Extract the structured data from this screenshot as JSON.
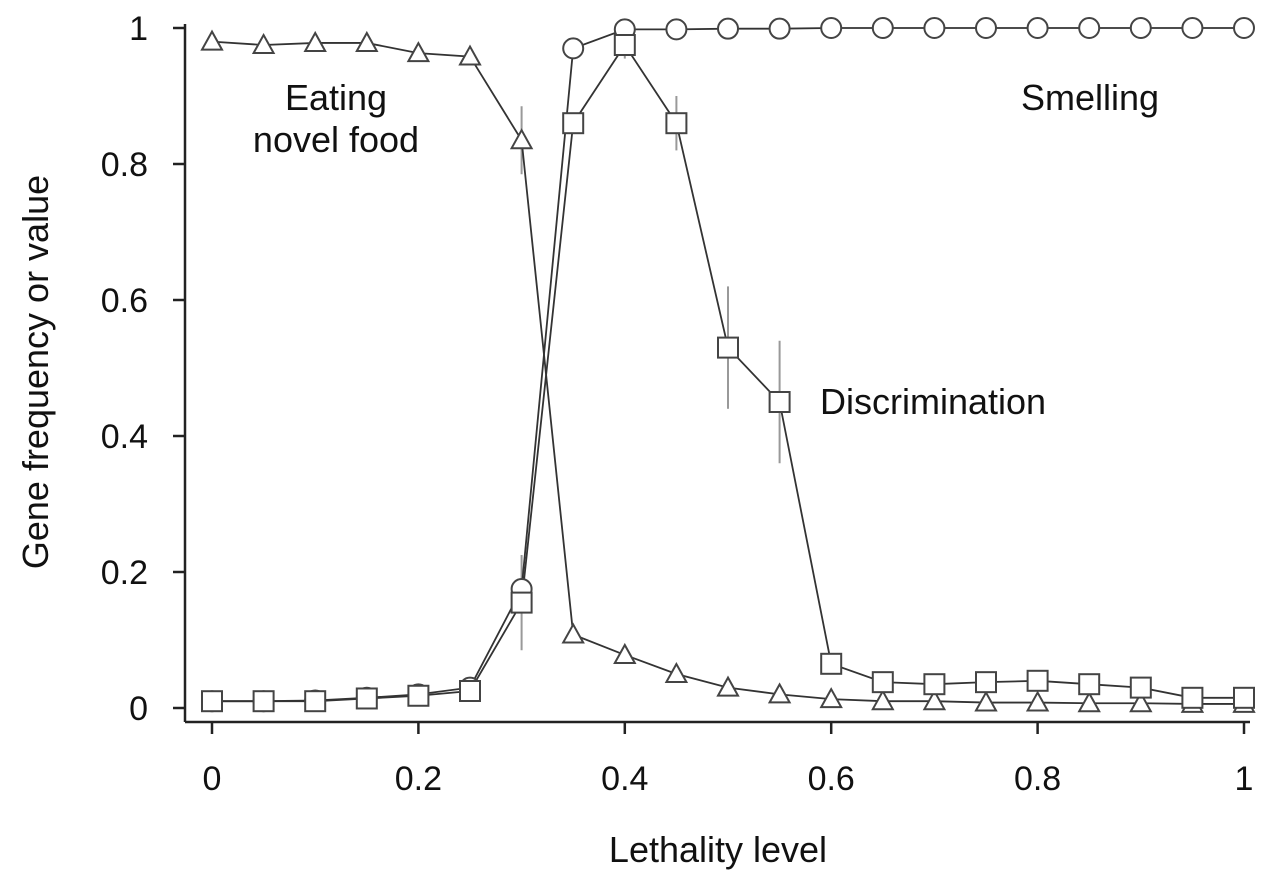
{
  "chart_data": {
    "type": "line",
    "xlabel": "Lethality level",
    "ylabel": "Gene frequency or value",
    "xlim": [
      0,
      1
    ],
    "ylim": [
      0,
      1
    ],
    "xticks": [
      "0",
      "0.2",
      "0.4",
      "0.6",
      "0.8",
      "1"
    ],
    "yticks": [
      "0",
      "0.2",
      "0.4",
      "0.6",
      "0.8",
      "1"
    ],
    "grid": false,
    "legend": "none",
    "x": [
      0,
      0.05,
      0.1,
      0.15,
      0.2,
      0.25,
      0.3,
      0.35,
      0.4,
      0.45,
      0.5,
      0.55,
      0.6,
      0.65,
      0.7,
      0.75,
      0.8,
      0.85,
      0.9,
      0.95,
      1.0
    ],
    "series": [
      {
        "marker": "triangle",
        "values": [
          0.98,
          0.975,
          0.978,
          0.978,
          0.963,
          0.958,
          0.835,
          0.108,
          0.078,
          0.05,
          0.03,
          0.02,
          0.013,
          0.01,
          0.01,
          0.008,
          0.008,
          0.007,
          0.007,
          0.006,
          0.006
        ],
        "errors": [
          0,
          0,
          0,
          0,
          0,
          0,
          0.05,
          0,
          0,
          0,
          0,
          0,
          0,
          0,
          0,
          0,
          0,
          0,
          0,
          0,
          0
        ]
      },
      {
        "marker": "circle",
        "values": [
          0.01,
          0.01,
          0.011,
          0.015,
          0.02,
          0.03,
          0.175,
          0.97,
          0.998,
          0.998,
          0.999,
          0.999,
          1.0,
          1.0,
          1.0,
          1.0,
          1.0,
          1.0,
          1.0,
          1.0,
          1.0
        ],
        "errors": [
          0,
          0,
          0,
          0,
          0,
          0,
          0,
          0,
          0,
          0,
          0,
          0,
          0,
          0,
          0,
          0,
          0,
          0,
          0,
          0,
          0
        ]
      },
      {
        "marker": "square",
        "values": [
          0.01,
          0.01,
          0.01,
          0.014,
          0.018,
          0.025,
          0.155,
          0.86,
          0.975,
          0.86,
          0.53,
          0.45,
          0.065,
          0.038,
          0.035,
          0.038,
          0.04,
          0.035,
          0.03,
          0.015,
          0.015
        ],
        "errors": [
          0,
          0,
          0,
          0,
          0,
          0,
          0.07,
          0,
          0.02,
          0.04,
          0.09,
          0.09,
          0,
          0,
          0,
          0,
          0,
          0,
          0,
          0,
          0
        ]
      }
    ],
    "annotations": [
      {
        "lines": [
          "Eating",
          "novel food"
        ]
      },
      {
        "lines": [
          "Smelling"
        ]
      },
      {
        "lines": [
          "Discrimination"
        ]
      }
    ]
  }
}
